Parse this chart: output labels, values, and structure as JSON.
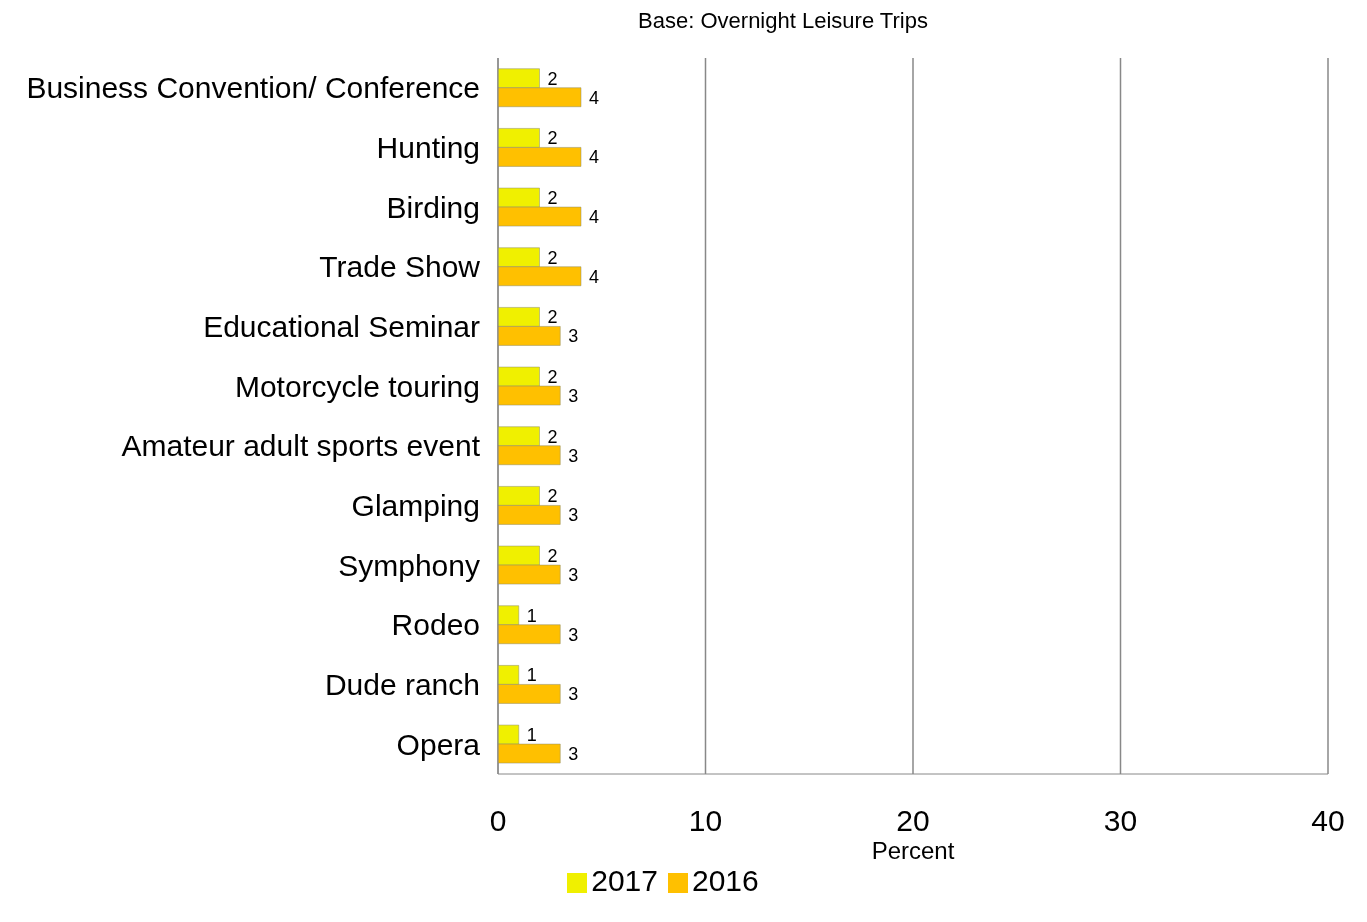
{
  "chart_data": {
    "type": "bar",
    "orientation": "horizontal",
    "title": "Base: Overnight Leisure Trips",
    "xlabel": "Percent",
    "categories": [
      "Business Convention/ Conference",
      "Hunting",
      "Birding",
      "Trade Show",
      "Educational Seminar",
      "Motorcycle touring",
      "Amateur adult sports event",
      "Glamping",
      "Symphony",
      "Rodeo",
      "Dude ranch",
      "Opera"
    ],
    "series": [
      {
        "name": "2017",
        "color": "#f0f000",
        "values": [
          2,
          2,
          2,
          2,
          2,
          2,
          2,
          2,
          2,
          1,
          1,
          1
        ]
      },
      {
        "name": "2016",
        "color": "#ffc000",
        "values": [
          4,
          4,
          4,
          4,
          3,
          3,
          3,
          3,
          3,
          3,
          3,
          3
        ]
      }
    ],
    "xlim": [
      0,
      40
    ],
    "xticks": [
      0,
      10,
      20,
      30,
      40
    ],
    "grid": "x",
    "legend": "bottom",
    "data_labels": true
  }
}
